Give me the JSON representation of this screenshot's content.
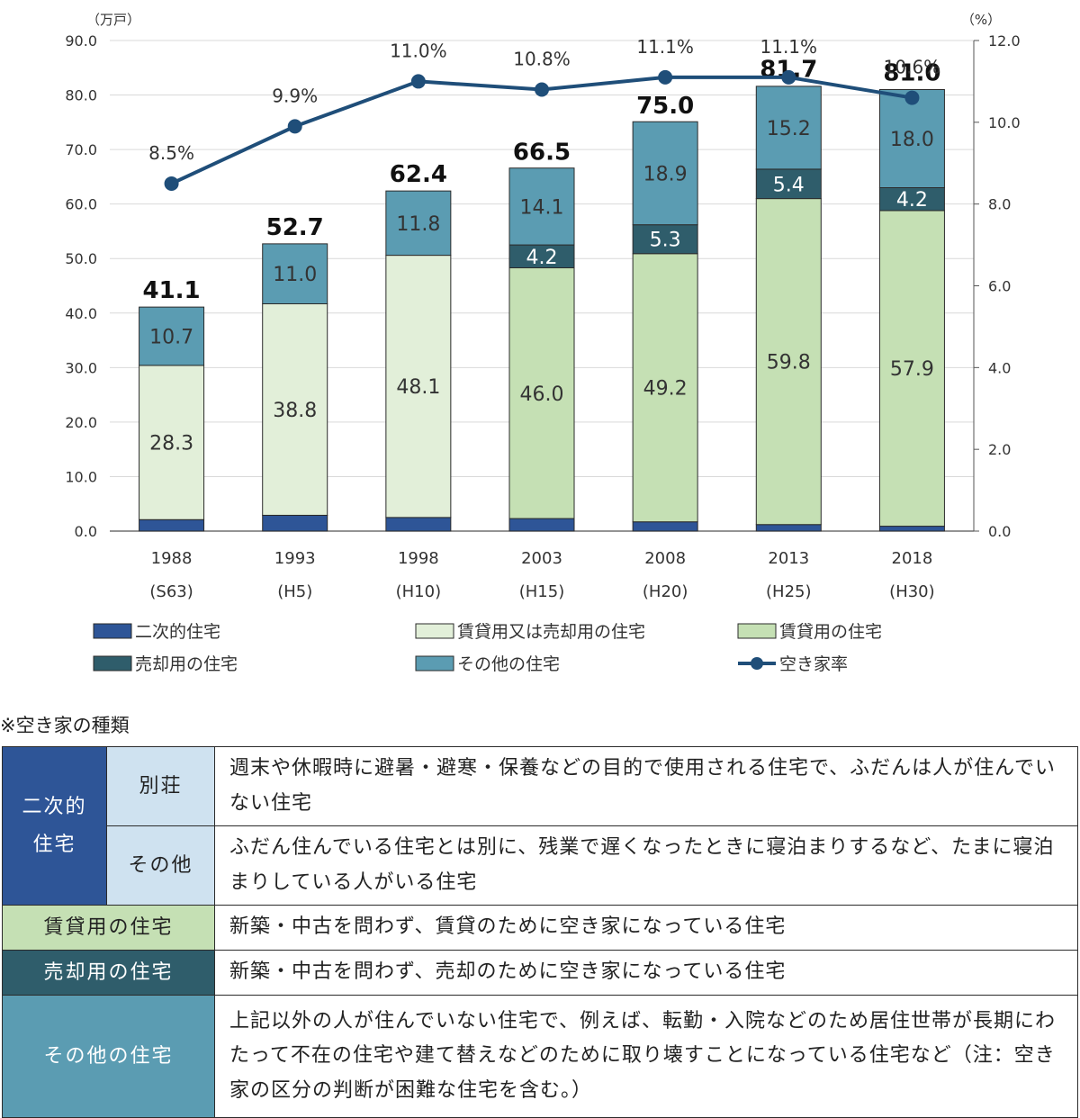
{
  "chart_data": {
    "type": "bar",
    "units": {
      "left": "（万戸）",
      "right": "（%）"
    },
    "categories": [
      {
        "year": "1988",
        "era": "(S63)"
      },
      {
        "year": "1993",
        "era": "(H5)"
      },
      {
        "year": "1998",
        "era": "(H10)"
      },
      {
        "year": "2003",
        "era": "(H15)"
      },
      {
        "year": "2008",
        "era": "(H20)"
      },
      {
        "year": "2013",
        "era": "(H25)"
      },
      {
        "year": "2018",
        "era": "(H30)"
      }
    ],
    "left_axis": {
      "min": 0,
      "max": 90,
      "step": 10,
      "ticks": [
        "0.0",
        "10.0",
        "20.0",
        "30.0",
        "40.0",
        "50.0",
        "60.0",
        "70.0",
        "80.0",
        "90.0"
      ]
    },
    "right_axis": {
      "min": 0,
      "max": 12,
      "step": 2,
      "ticks": [
        "0.0",
        "2.0",
        "4.0",
        "6.0",
        "8.0",
        "10.0",
        "12.0"
      ]
    },
    "series": [
      {
        "name": "二次的住宅",
        "color": "#2e5597",
        "values": [
          2.1,
          2.9,
          2.5,
          2.3,
          1.7,
          1.2,
          0.9
        ]
      },
      {
        "name": "賃貸用又は売却用の住宅",
        "color": "#e2efd9",
        "values": [
          28.3,
          38.8,
          48.1,
          null,
          null,
          null,
          null
        ]
      },
      {
        "name": "賃貸用の住宅",
        "color": "#c5e0b4",
        "values": [
          null,
          null,
          null,
          46.0,
          49.2,
          59.8,
          57.9
        ]
      },
      {
        "name": "売却用の住宅",
        "color": "#2f5d6b",
        "values": [
          null,
          null,
          null,
          4.2,
          5.3,
          5.4,
          4.2
        ]
      },
      {
        "name": "その他の住宅",
        "color": "#5b9cb2",
        "values": [
          10.7,
          11.0,
          11.8,
          14.1,
          18.9,
          15.2,
          18.0
        ]
      }
    ],
    "totals": [
      41.1,
      52.7,
      62.4,
      66.5,
      75.0,
      81.7,
      81.0
    ],
    "line": {
      "name": "空き家率",
      "color": "#1f4e79",
      "axis": "right",
      "values": [
        8.5,
        9.9,
        11.0,
        10.8,
        11.1,
        11.1,
        10.6
      ],
      "labels": [
        "8.5%",
        "9.9%",
        "11.0%",
        "10.8%",
        "11.1%",
        "11.1%",
        "10.6%"
      ]
    },
    "grid": "horizontal",
    "legend": {
      "placement": "bottom",
      "items": [
        "二次的住宅",
        "賃貸用又は売却用の住宅",
        "賃貸用の住宅",
        "売却用の住宅",
        "その他の住宅",
        "空き家率"
      ]
    }
  },
  "note": {
    "title": "※空き家の種類",
    "rows": {
      "second_home": "二次的\n住宅",
      "villa": "別荘",
      "villa_desc": "週末や休暇時に避暑・避寒・保養などの目的で使用される住宅で、ふだんは人が住んでいない住宅",
      "other_sub": "その他",
      "other_sub_desc": "ふだん住んでいる住宅とは別に、残業で遅くなったときに寝泊まりするなど、たまに寝泊まりしている人がいる住宅",
      "rent": "賃貸用の住宅",
      "rent_desc": "新築・中古を問わず、賃貸のために空き家になっている住宅",
      "sale": "売却用の住宅",
      "sale_desc": "新築・中古を問わず、売却のために空き家になっている住宅",
      "other": "その他の住宅",
      "other_desc": "上記以外の人が住んでいない住宅で、例えば、転勤・入院などのため居住世帯が長期にわたって不在の住宅や建て替えなどのために取り壊すことになっている住宅など（注：空き家の区分の判断が困難な住宅を含む。）"
    }
  }
}
